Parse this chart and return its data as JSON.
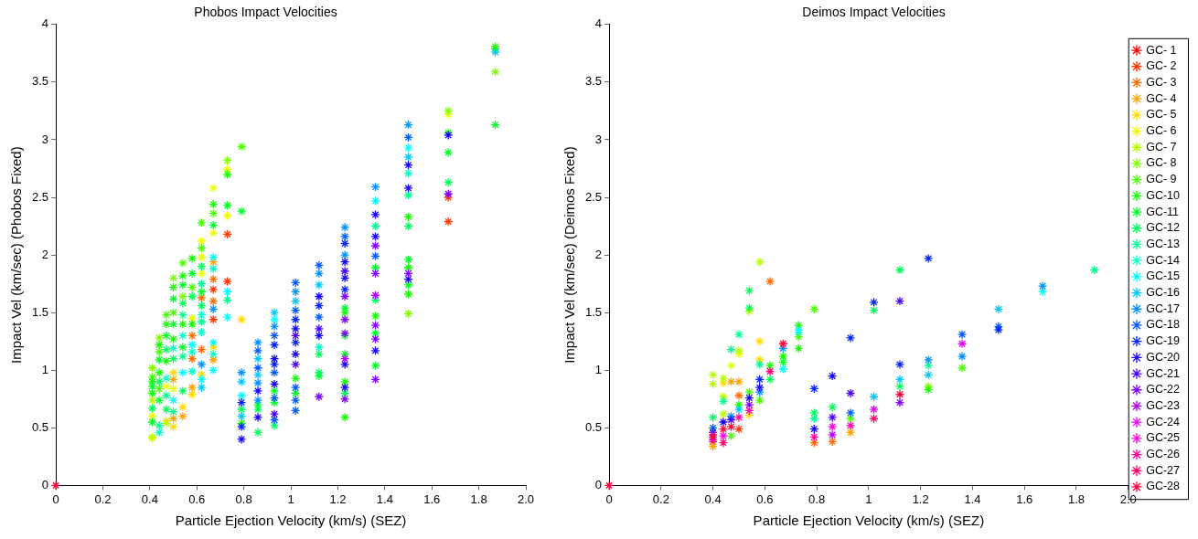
{
  "chart_data": [
    {
      "type": "scatter",
      "title": "Phobos Impact Velocities",
      "xlabel": "Particle Ejection Velocity (km/s) (SEZ)",
      "ylabel": "Impact Vel (km/sec) (Phobos Fixed)",
      "xlim": [
        0,
        2
      ],
      "ylim": [
        0,
        4
      ],
      "xticks": [
        0,
        0.2,
        0.4,
        0.6,
        0.8,
        1,
        1.2,
        1.4,
        1.6,
        1.8,
        {
          "value": 2,
          "label": "2.0"
        }
      ],
      "yticks": [
        0,
        0.5,
        1,
        1.5,
        2,
        2.5,
        3,
        3.5,
        4
      ],
      "grid": false,
      "legend": false,
      "marker": "cross",
      "series": [
        {
          "color": "#ff3700",
          "x": [
            0.67,
            0.67,
            0.73,
            0.73,
            1.67,
            1.67
          ],
          "values": [
            1.7,
            1.44,
            2.18,
            1.77,
            2.5,
            2.29
          ]
        },
        {
          "color": "#ff6d00",
          "x": [
            0.58,
            0.58,
            0.62,
            0.62,
            0.67,
            0.67
          ],
          "values": [
            1.3,
            1.1,
            1.63,
            1.18,
            1.79,
            1.6
          ]
        },
        {
          "color": "#ffa400",
          "x": [
            0.5,
            0.5,
            0.54,
            0.58,
            0.67,
            0.67
          ],
          "values": [
            0.92,
            0.58,
            0.6,
            0.85,
            1.94,
            1.09
          ]
        },
        {
          "color": "#ffdb00",
          "x": [
            0.47,
            0.5,
            0.5,
            0.54,
            0.58,
            0.62,
            0.67,
            0.79
          ],
          "values": [
            0.56,
            0.98,
            0.51,
            0.68,
            0.79,
            0.96,
            1.2,
            1.44
          ]
        },
        {
          "color": "#edff00",
          "x": [
            0.41,
            0.41,
            0.47,
            0.5,
            0.58,
            0.62,
            0.62,
            0.62,
            0.67,
            0.67,
            0.73,
            0.73,
            1.67
          ],
          "values": [
            0.6,
            0.41,
            0.86,
            0.84,
            1.45,
            2.12,
            1.98,
            1.84,
            2.58,
            2.19,
            2.74,
            2.34,
            3.22
          ]
        },
        {
          "color": "#b6ff00",
          "x": [
            0.41,
            0.41,
            0.47
          ],
          "values": [
            0.74,
            0.42,
            0.54
          ]
        },
        {
          "color": "#80ff00",
          "x": [
            0.41,
            0.44,
            0.5,
            0.54,
            0.73,
            1.5,
            1.67,
            1.87
          ],
          "values": [
            1.02,
            1.28,
            1.8,
            1.64,
            2.82,
            1.49,
            3.25,
            3.59
          ]
        },
        {
          "color": "#49ff00",
          "x": [
            0.41,
            0.44,
            0.44,
            0.47,
            0.5,
            0.54,
            0.58,
            0.62,
            0.62,
            0.67,
            0.79,
            1.87
          ],
          "values": [
            0.94,
            1.16,
            0.84,
            1.48,
            1.5,
            1.93,
            1.72,
            2.28,
            2.06,
            2.36,
            2.94,
            3.81
          ]
        },
        {
          "color": "#12ff00",
          "x": [
            0.41,
            0.41,
            0.44,
            0.44,
            0.47,
            0.47,
            0.5,
            0.5,
            0.54,
            0.54,
            0.58,
            0.58,
            0.67,
            0.73,
            0.79,
            1.02,
            1.23,
            1.23,
            1.23,
            1.36,
            1.5,
            1.5,
            1.5,
            1.67,
            1.87
          ],
          "values": [
            0.9,
            0.8,
            1.22,
            0.98,
            1.4,
            1.08,
            1.72,
            1.27,
            1.82,
            1.4,
            1.97,
            1.4,
            2.44,
            2.7,
            0.54,
            0.93,
            1.5,
            0.9,
            0.59,
            1.47,
            2.33,
            1.89,
            1.66,
            3.06,
            3.79
          ]
        },
        {
          "color": "#00ff24",
          "x": [
            0.41,
            0.41,
            0.44,
            0.44,
            0.47,
            0.5,
            0.5,
            0.54,
            0.54,
            0.58,
            0.62,
            0.67,
            0.73,
            0.79,
            0.86,
            0.93,
            0.93,
            1.02,
            1.12,
            1.23,
            1.23,
            1.23,
            1.36,
            1.36,
            1.36,
            1.5,
            1.5,
            1.67,
            1.87
          ],
          "values": [
            0.86,
            0.55,
            1.09,
            0.74,
            1.3,
            1.62,
            1.4,
            1.74,
            1.2,
            1.84,
            1.68,
            2.26,
            2.43,
            2.38,
            0.7,
            0.82,
            0.72,
            0.8,
            0.95,
            1.54,
            1.3,
            1.14,
            1.89,
            1.32,
            1.04,
            1.96,
            1.74,
            2.89,
            3.13
          ]
        },
        {
          "color": "#00ff5b",
          "x": [
            0.41,
            0.44,
            0.47,
            0.47,
            0.5,
            0.54,
            0.54,
            0.58,
            0.62,
            0.62,
            0.79,
            0.86,
            0.86,
            0.93,
            1.12,
            1.12,
            1.23,
            1.36,
            1.5,
            1.67
          ],
          "values": [
            0.67,
            0.9,
            1.18,
            0.66,
            1.1,
            1.58,
            0.82,
            1.64,
            1.9,
            1.56,
            0.66,
            0.66,
            0.46,
            0.52,
            1.14,
            0.98,
            0.8,
            1.61,
            2.25,
            2.63
          ]
        },
        {
          "color": "#00ff92",
          "x": [
            0.44,
            0.47,
            0.5,
            0.54,
            0.54,
            0.62,
            0.62,
            0.73,
            1.36,
            1.5
          ],
          "values": [
            0.52,
            0.78,
            0.64,
            1.48,
            1.12,
            1.75,
            1.42,
            1.61,
            2.25,
            2.52
          ]
        },
        {
          "color": "#00ffc9",
          "x": [
            0.44,
            0.47,
            0.5,
            0.54,
            0.58,
            0.58,
            0.62,
            0.62,
            0.67,
            0.67,
            1.12,
            1.5
          ],
          "values": [
            0.46,
            0.93,
            1.19,
            1.3,
            1.16,
            0.99,
            1.48,
            1.33,
            1.88,
            1.14,
            1.2,
            2.71
          ]
        },
        {
          "color": "#00ffff",
          "x": [
            0.5,
            0.54,
            0.58,
            0.62,
            0.67,
            0.67,
            0.67,
            0.73,
            0.73,
            0.79,
            0.93,
            1.36,
            1.5
          ],
          "values": [
            0.74,
            0.98,
            1.22,
            0.92,
            1.98,
            1.24,
            1.0,
            1.68,
            1.46,
            0.78,
            1.44,
            2.47,
            2.93
          ]
        },
        {
          "color": "#00c8ff",
          "x": [
            0.62,
            0.79,
            0.79,
            0.86,
            0.86,
            0.93,
            1.02,
            1.12,
            1.5,
            1.87
          ],
          "values": [
            0.85,
            0.9,
            0.6,
            1.1,
            0.96,
            1.5,
            1.6,
            1.74,
            2.85,
            3.76
          ]
        },
        {
          "color": "#0092ff",
          "x": [
            0.62,
            0.67,
            0.79,
            0.86,
            0.86,
            0.86,
            0.93,
            1.02,
            1.12,
            1.23,
            1.23,
            1.36,
            1.5
          ],
          "values": [
            1.05,
            1.53,
            0.98,
            1.24,
            0.89,
            0.74,
            1.38,
            1.68,
            1.84,
            2.24,
            2.0,
            2.59,
            3.13
          ]
        },
        {
          "color": "#005bff",
          "x": [
            0.86,
            0.86,
            0.93,
            0.93,
            0.93,
            0.93,
            1.02,
            1.02,
            1.02,
            1.02,
            1.02,
            1.12,
            1.12,
            1.23,
            1.36,
            1.5
          ],
          "values": [
            1.17,
            1.02,
            1.3,
            0.98,
            0.76,
            0.57,
            1.76,
            1.52,
            0.85,
            0.74,
            0.65,
            1.91,
            1.46,
            2.16,
            1.99,
            3.02
          ]
        },
        {
          "color": "#0024ff",
          "x": [
            0.79,
            0.79,
            0.93,
            0.93,
            1.02,
            1.02,
            1.12,
            1.23,
            1.23
          ],
          "values": [
            0.72,
            0.51,
            1.22,
            1.05,
            1.44,
            1.24,
            1.56,
            2.1,
            1.7
          ]
        },
        {
          "color": "#1200ff",
          "x": [
            0.79,
            0.86,
            0.86,
            0.93,
            0.93,
            1.02,
            1.02,
            1.12,
            1.12,
            1.23,
            1.23,
            1.23,
            1.23,
            1.36,
            1.36,
            1.36,
            1.5,
            1.5,
            1.5,
            1.67
          ],
          "values": [
            0.4,
            0.82,
            0.59,
            1.1,
            0.88,
            1.36,
            1.14,
            1.64,
            1.3,
            1.94,
            1.8,
            1.05,
            0.85,
            2.35,
            2.16,
            1.17,
            2.78,
            2.58,
            1.79,
            3.04
          ]
        },
        {
          "color": "#4900ff",
          "x": [
            0.93,
            1.02,
            1.02,
            1.12,
            1.23
          ],
          "values": [
            0.62,
            1.3,
            1.05,
            1.36,
            1.86
          ]
        },
        {
          "color": "#8000ff",
          "x": [
            1.12,
            1.23,
            1.23,
            1.23,
            1.23,
            1.36,
            1.36,
            1.36,
            1.36,
            1.36,
            1.5,
            1.67
          ],
          "values": [
            0.77,
            1.64,
            1.44,
            1.32,
            0.75,
            2.08,
            1.84,
            1.39,
            1.27,
            0.92,
            1.84,
            2.53
          ]
        },
        {
          "color": "#b600ff",
          "x": [
            1.23,
            1.36
          ],
          "values": [
            1.1,
            1.65
          ]
        },
        {
          "color": "#ff0037",
          "x": [
            0
          ],
          "values": [
            0
          ]
        }
      ]
    },
    {
      "type": "scatter",
      "title": "Deimos Impact Velocities",
      "xlabel": "Particle Ejection Velocity (km/s) (SEZ)",
      "ylabel": "Impact Vel (km/sec) (Deimos Fixed)",
      "xlim": [
        0,
        2
      ],
      "ylim": [
        0,
        4
      ],
      "xticks": [
        0,
        0.2,
        0.4,
        0.6,
        0.8,
        1,
        1.2,
        1.4,
        1.6,
        1.8,
        {
          "value": 2,
          "label": "2.0"
        }
      ],
      "yticks": [
        0,
        0.5,
        1,
        1.5,
        2,
        2.5,
        3,
        3.5,
        4
      ],
      "grid": false,
      "legend": "right",
      "marker": "cross",
      "series": [
        {
          "name": "GC- 1",
          "color": "#ff0000",
          "x": [
            0.4
          ],
          "values": [
            0.38
          ]
        },
        {
          "name": "GC- 2",
          "color": "#ff3700",
          "x": [
            0.5
          ],
          "values": [
            0.49
          ]
        },
        {
          "name": "GC- 3",
          "color": "#ff6d00",
          "x": [
            0.5,
            0.62,
            0.79,
            0.86
          ],
          "values": [
            0.78,
            1.77,
            0.37,
            0.38
          ]
        },
        {
          "name": "GC- 4",
          "color": "#ffa400",
          "x": [
            0.4,
            0.47,
            0.5,
            0.93
          ],
          "values": [
            0.34,
            0.9,
            0.9,
            0.46
          ]
        },
        {
          "name": "GC- 5",
          "color": "#ffdb00",
          "x": [
            0.44,
            0.54,
            0.58,
            0.58
          ],
          "values": [
            0.89,
            0.61,
            1.25,
            1.09
          ]
        },
        {
          "name": "GC- 6",
          "color": "#edff00",
          "x": [
            0.47,
            0.5
          ],
          "values": [
            1.04,
            1.14
          ]
        },
        {
          "name": "GC- 7",
          "color": "#b6ff00",
          "x": [
            0.4,
            0.4,
            0.44,
            0.44,
            0.44,
            0.5,
            0.54,
            0.58
          ],
          "values": [
            0.96,
            0.88,
            0.93,
            0.77,
            0.62,
            1.17,
            1.51,
            1.94
          ]
        },
        {
          "name": "GC- 8",
          "color": "#80ff00",
          "x": [
            1.23
          ],
          "values": [
            0.86
          ]
        },
        {
          "name": "GC- 9",
          "color": "#49ff00",
          "x": [
            0.47,
            0.54,
            0.58,
            0.73,
            0.79,
            0.93,
            1.36
          ],
          "values": [
            0.43,
            0.81,
            0.74,
            1.29,
            1.53,
            0.58,
            1.02
          ]
        },
        {
          "name": "GC-10",
          "color": "#12ff00",
          "x": [
            0.5,
            0.62,
            0.67,
            0.73,
            0.73,
            1.23
          ],
          "values": [
            0.7,
            1.04,
            1.12,
            1.39,
            1.19,
            0.83
          ]
        },
        {
          "name": "GC-11",
          "color": "#00ff24",
          "x": [
            0.67
          ],
          "values": [
            1.07
          ]
        },
        {
          "name": "GC-12",
          "color": "#00ff5b",
          "x": [
            0.4,
            0.54,
            0.54,
            0.62,
            0.79,
            0.86,
            1.02,
            1.12,
            1.12
          ],
          "values": [
            0.59,
            1.69,
            1.54,
            0.92,
            0.63,
            0.68,
            1.52,
            1.87,
            0.86
          ]
        },
        {
          "name": "GC-13",
          "color": "#00ff92",
          "x": [
            0.44,
            0.47,
            0.5,
            0.58,
            0.79,
            1.23,
            1.87
          ],
          "values": [
            0.73,
            1.18,
            1.31,
            1.05,
            0.58,
            1.04,
            1.87
          ]
        },
        {
          "name": "GC-14",
          "color": "#00ffc9",
          "x": [
            0.73
          ],
          "values": [
            1.33
          ]
        },
        {
          "name": "GC-15",
          "color": "#00ffff",
          "x": [
            0.67,
            0.73,
            1.67
          ],
          "values": [
            1.01,
            1.35,
            1.68
          ]
        },
        {
          "name": "GC-16",
          "color": "#00c8ff",
          "x": [
            0.5,
            1.02,
            1.12,
            1.23,
            1.5
          ],
          "values": [
            0.66,
            0.77,
            0.92,
            0.96,
            1.53
          ]
        },
        {
          "name": "GC-17",
          "color": "#0092ff",
          "x": [
            0.47,
            0.58,
            0.67,
            1.23,
            1.36,
            1.67
          ],
          "values": [
            0.6,
            0.81,
            1.19,
            1.09,
            1.12,
            1.73
          ]
        },
        {
          "name": "GC-18",
          "color": "#005bff",
          "x": [
            0.4,
            0.93,
            1.36,
            1.5
          ],
          "values": [
            0.5,
            0.63,
            1.31,
            1.38
          ]
        },
        {
          "name": "GC-19",
          "color": "#0024ff",
          "x": [
            0.58,
            0.79,
            0.93,
            1.02,
            1.12,
            1.23,
            1.5
          ],
          "values": [
            0.92,
            0.84,
            1.28,
            1.59,
            1.05,
            1.97,
            1.35
          ]
        },
        {
          "name": "GC-20",
          "color": "#1200ff",
          "x": [
            0.4,
            0.44,
            0.54,
            0.58,
            0.79,
            0.86
          ],
          "values": [
            0.46,
            0.55,
            0.76,
            0.85,
            0.49,
            0.95
          ]
        },
        {
          "name": "GC-21",
          "color": "#4900ff",
          "x": [
            0.47,
            0.86,
            0.93,
            1.12
          ],
          "values": [
            0.57,
            0.59,
            0.8,
            1.6
          ]
        },
        {
          "name": "GC-22",
          "color": "#8000ff",
          "x": [
            0.54,
            1.12
          ],
          "values": [
            0.7,
            0.72
          ]
        },
        {
          "name": "GC-23",
          "color": "#b600ff",
          "x": [
            0.86
          ],
          "values": [
            0.44
          ]
        },
        {
          "name": "GC-24",
          "color": "#ed00ff",
          "x": [
            0.4,
            1.02,
            1.36
          ],
          "values": [
            0.4,
            0.66,
            1.23
          ]
        },
        {
          "name": "GC-25",
          "color": "#ff00db",
          "x": [
            0.44,
            0.86
          ],
          "values": [
            0.43,
            0.51
          ]
        },
        {
          "name": "GC-26",
          "color": "#ff00a4",
          "x": [
            0.4,
            0.5,
            0.54,
            0.79,
            0.93
          ],
          "values": [
            0.44,
            0.59,
            0.65,
            0.42,
            0.52
          ]
        },
        {
          "name": "GC-27",
          "color": "#ff006d",
          "x": [
            0.44,
            0.62,
            1.02
          ],
          "values": [
            0.37,
            0.99,
            0.58
          ]
        },
        {
          "name": "GC-28",
          "color": "#ff0037",
          "x": [
            0,
            0.4,
            0.44,
            0.47,
            0.67,
            1.12
          ],
          "values": [
            0,
            0.42,
            0.49,
            0.51,
            1.23,
            0.79
          ]
        }
      ]
    }
  ]
}
